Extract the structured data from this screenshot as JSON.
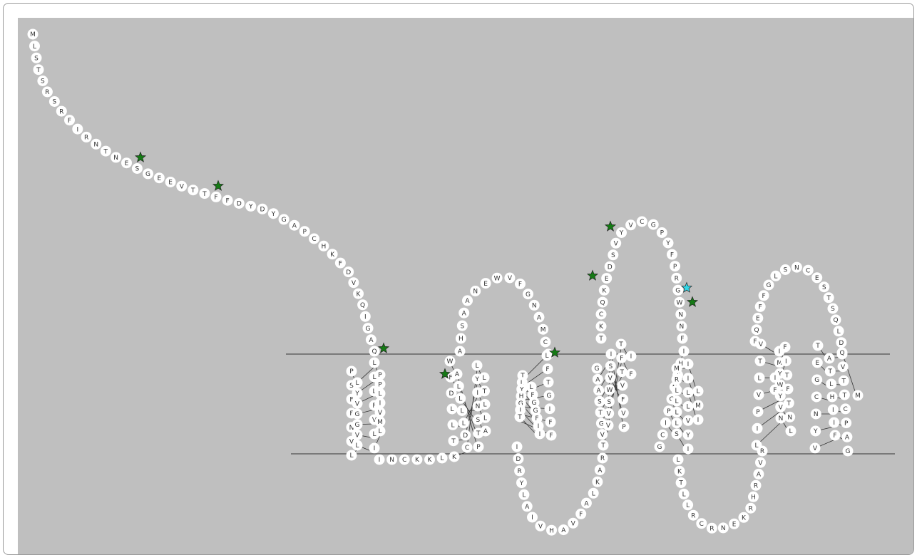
{
  "diagram": {
    "background_color": "#bfbfbf",
    "residue_fill": "#ffffff",
    "residue_text_color": "#333333",
    "membrane_line_color": "#333333",
    "marker_colors": {
      "green": "#157a15",
      "cyan": "#33d6e6"
    },
    "n_terminus": [
      "M",
      "L",
      "S",
      "T",
      "S",
      "R",
      "S",
      "R",
      "F",
      "I",
      "R",
      "N",
      "T",
      "N",
      "E",
      "S",
      "G",
      "E",
      "E",
      "V",
      "T",
      "T",
      "F",
      "F",
      "D",
      "Y",
      "D",
      "Y",
      "G",
      "A",
      "P",
      "C",
      "H",
      "K",
      "F",
      "D",
      "V",
      "K",
      "Q",
      "I",
      "G",
      "A",
      "Q"
    ],
    "tm1": [
      [
        "P",
        "S",
        "F",
        "F",
        "N",
        "V",
        "L"
      ],
      [
        "L",
        "Y",
        "V",
        "G",
        "G",
        "V",
        "L"
      ],
      [
        "L",
        "L",
        "L",
        "F",
        "V",
        "L",
        "I"
      ],
      [
        "P",
        "P",
        "L",
        "I",
        "V",
        "M",
        "L"
      ]
    ],
    "icl1": [
      "I",
      "N",
      "C",
      "K",
      "K",
      "L"
    ],
    "tm2": [
      [
        "K",
        "T",
        "L",
        "L",
        "D",
        "F",
        "W"
      ],
      [
        "C",
        "D",
        "L",
        "L",
        "L",
        "L",
        "A"
      ],
      [
        "L",
        "Y",
        "I",
        "N",
        "S",
        "T",
        "P"
      ],
      [
        "L",
        "T",
        "L",
        "L",
        "A"
      ]
    ],
    "ecl1": [
      "A",
      "H",
      "S",
      "A",
      "A",
      "N",
      "E",
      "W",
      "V",
      "F",
      "G",
      "N",
      "A",
      "M",
      "C",
      "K"
    ],
    "tm3": [
      [
        "L",
        "F",
        "T",
        "G",
        "I",
        "F",
        "F"
      ],
      [
        "T",
        "L",
        "Y",
        "H",
        "G",
        "I",
        "T"
      ],
      [
        "L",
        "F",
        "G",
        "G",
        "F",
        "I",
        "I"
      ]
    ],
    "icl2": [
      "I",
      "D",
      "R",
      "Y",
      "L",
      "A",
      "I",
      "V",
      "H",
      "A",
      "V",
      "F",
      "A",
      "L",
      "K",
      "A",
      "R"
    ],
    "tm4": [
      [
        "T",
        "V",
        "G",
        "T",
        "S",
        "A",
        "A",
        "G"
      ],
      [
        "V",
        "V",
        "S",
        "W",
        "V",
        "S",
        "I"
      ],
      [
        "T",
        "F",
        "T",
        "V",
        "F",
        "V",
        "P"
      ],
      [
        "I",
        "F"
      ]
    ],
    "ecl2": [
      "T",
      "K",
      "C",
      "Q",
      "K",
      "E",
      "D",
      "S",
      "V",
      "Y",
      "V",
      "C",
      "G",
      "P",
      "Y",
      "F",
      "P",
      "R",
      "G",
      "W",
      "N",
      "N",
      "F"
    ],
    "tm5": [
      [
        "I",
        "H",
        "T",
        "N",
        "G",
        "P",
        "I",
        "C",
        "G"
      ],
      [
        "M",
        "R",
        "L",
        "L",
        "L",
        "L",
        "S"
      ],
      [
        "I",
        "I",
        "L",
        "L",
        "V",
        "Y",
        "I"
      ],
      [
        "L",
        "M",
        "I"
      ]
    ],
    "icl3": [
      "L",
      "K",
      "T",
      "L",
      "L",
      "R",
      "C",
      "R",
      "N",
      "E",
      "K",
      "R",
      "H",
      "R",
      "A",
      "V",
      "R"
    ],
    "tm6": [
      [
        "V",
        "T",
        "L",
        "V",
        "P",
        "I",
        "L"
      ],
      [
        "I",
        "M",
        "Y",
        "W",
        "Y",
        "V",
        "N"
      ],
      [
        "F",
        "I",
        "T",
        "F",
        "T",
        "N",
        "L"
      ],
      [
        "I",
        "F"
      ]
    ],
    "ecl3": [
      "F",
      "Q",
      "E",
      "F",
      "F",
      "G",
      "L",
      "S",
      "N",
      "C",
      "E",
      "S",
      "T",
      "S",
      "Q",
      "L",
      "D",
      "Q"
    ],
    "tm7": [
      [
        "T",
        "E",
        "G",
        "C",
        "N",
        "Y",
        "V"
      ],
      [
        "A",
        "T",
        "L",
        "H",
        "I",
        "I",
        "F"
      ],
      [
        "Q",
        "V",
        "T",
        "T",
        "C",
        "P",
        "A",
        "G"
      ],
      [
        "M"
      ]
    ],
    "markers": [
      {
        "residue": "S",
        "color": "green"
      },
      {
        "residue": "F",
        "color": "green"
      },
      {
        "residue": "Q",
        "color": "green"
      },
      {
        "residue": "W",
        "color": "green"
      },
      {
        "residue": "L",
        "color": "green"
      },
      {
        "residue": "K",
        "color": "green"
      },
      {
        "residue": "V",
        "color": "green"
      },
      {
        "residue": "R",
        "color": "cyan"
      },
      {
        "residue": "G",
        "color": "green"
      }
    ]
  }
}
